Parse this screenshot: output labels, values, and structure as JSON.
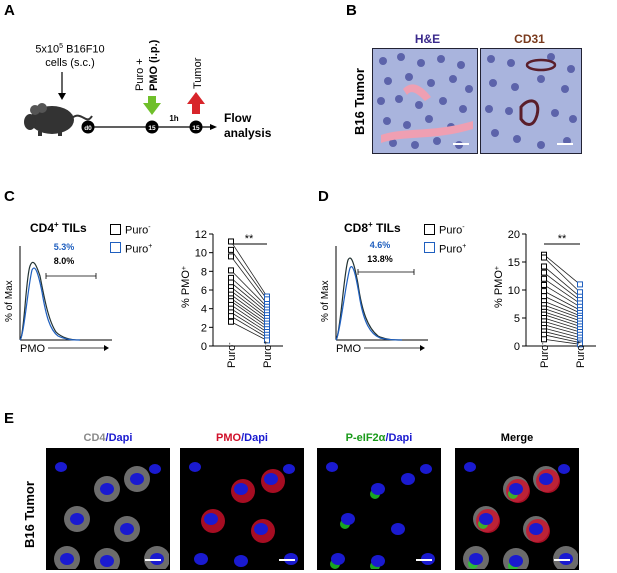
{
  "panels": {
    "A": "A",
    "B": "B",
    "C": "C",
    "D": "D",
    "E": "E"
  },
  "panelA": {
    "cells_text": "5x10",
    "cells_exp": "5",
    "cells_text2": " B16F10",
    "cells_line2": "cells (s.c.)",
    "day0": "d0",
    "day15a": "15",
    "day15b": "15",
    "puro_line1": "Puro +",
    "puro_line2": "PMO (i.p.)",
    "tumor": "Tumor",
    "interval": "1h",
    "flow_line1": "Flow",
    "flow_line2": "analysis"
  },
  "panelB": {
    "row_label": "B16 Tumor",
    "he_title": "H&E",
    "cd31_title": "CD31",
    "colors": {
      "he_title": "#3b2a8c",
      "cd31_title": "#7a3b1e"
    }
  },
  "panelC": {
    "title": "CD4",
    "title_sup": "+",
    "title_suffix": " TILs",
    "legend_minus": "Puro",
    "legend_minus_sup": "-",
    "legend_plus": "Puro",
    "legend_plus_sup": "+",
    "pct_blue": "5.3%",
    "pct_black": "8.0%",
    "hist_ylabel": "% of Max",
    "hist_xlabel": "PMO",
    "sig": "**"
  },
  "panelD": {
    "title": "CD8",
    "title_sup": "+",
    "title_suffix": " TILs",
    "legend_minus": "Puro",
    "legend_minus_sup": "-",
    "legend_plus": "Puro",
    "legend_plus_sup": "+",
    "pct_blue": "4.6%",
    "pct_black": "13.8%",
    "hist_ylabel": "% of Max",
    "hist_xlabel": "PMO",
    "sig": "**"
  },
  "panelE": {
    "row_label": "B16 Tumor",
    "titles": [
      {
        "a": "CD4",
        "b": "/Dapi",
        "color_a": "#8a8a8a"
      },
      {
        "a": "PMO",
        "b": "/Dapi",
        "color_a": "#d0102a"
      },
      {
        "a": "P-eIF2α",
        "b": "/Dapi",
        "color_a": "#1a9a1a"
      },
      {
        "a": "Merge",
        "b": "",
        "color_a": "#000000"
      }
    ],
    "dapi_color": "#1a1ad0"
  },
  "chart_data": [
    {
      "type": "line",
      "title": "CD4+ TILs",
      "xlabel": "",
      "ylabel": "% PMO+",
      "categories": [
        "Puro-",
        "Puro+"
      ],
      "ylim": [
        0,
        12
      ],
      "yticks": [
        0,
        2,
        4,
        6,
        8,
        10,
        12
      ],
      "series": [
        {
          "values": [
            11.2,
            5.3
          ]
        },
        {
          "values": [
            10.3,
            5.0
          ]
        },
        {
          "values": [
            9.6,
            4.5
          ]
        },
        {
          "values": [
            8.1,
            4.2
          ]
        },
        {
          "values": [
            7.3,
            3.9
          ]
        },
        {
          "values": [
            6.8,
            3.6
          ]
        },
        {
          "values": [
            6.3,
            3.3
          ]
        },
        {
          "values": [
            5.9,
            3.0
          ]
        },
        {
          "values": [
            5.5,
            2.7
          ]
        },
        {
          "values": [
            5.1,
            2.4
          ]
        },
        {
          "values": [
            4.8,
            2.1
          ]
        },
        {
          "values": [
            4.4,
            1.8
          ]
        },
        {
          "values": [
            4.0,
            1.5
          ]
        },
        {
          "values": [
            3.6,
            1.2
          ]
        },
        {
          "values": [
            3.2,
            0.9
          ]
        },
        {
          "values": [
            2.6,
            0.6
          ]
        }
      ],
      "colors": {
        "pre": "#000000",
        "post": "#1f5fbf"
      }
    },
    {
      "type": "line",
      "title": "CD8+ TILs",
      "xlabel": "",
      "ylabel": "% PMO+",
      "categories": [
        "Puro-",
        "Puro+"
      ],
      "ylim": [
        0,
        20
      ],
      "yticks": [
        0,
        5,
        10,
        15,
        20
      ],
      "series": [
        {
          "values": [
            16.3,
            11.0
          ]
        },
        {
          "values": [
            15.8,
            9.6
          ]
        },
        {
          "values": [
            14.2,
            8.8
          ]
        },
        {
          "values": [
            13.1,
            8.2
          ]
        },
        {
          "values": [
            12.0,
            7.6
          ]
        },
        {
          "values": [
            10.9,
            7.0
          ]
        },
        {
          "values": [
            9.8,
            6.4
          ]
        },
        {
          "values": [
            8.9,
            5.9
          ]
        },
        {
          "values": [
            8.0,
            5.4
          ]
        },
        {
          "values": [
            7.3,
            5.0
          ]
        },
        {
          "values": [
            6.7,
            4.5
          ]
        },
        {
          "values": [
            6.1,
            4.0
          ]
        },
        {
          "values": [
            5.6,
            3.5
          ]
        },
        {
          "values": [
            5.0,
            3.0
          ]
        },
        {
          "values": [
            4.4,
            2.5
          ]
        },
        {
          "values": [
            3.8,
            2.0
          ]
        },
        {
          "values": [
            3.2,
            1.5
          ]
        },
        {
          "values": [
            2.6,
            1.0
          ]
        },
        {
          "values": [
            2.0,
            0.6
          ]
        },
        {
          "values": [
            1.2,
            0.3
          ]
        }
      ],
      "colors": {
        "pre": "#000000",
        "post": "#1f5fbf"
      }
    }
  ]
}
